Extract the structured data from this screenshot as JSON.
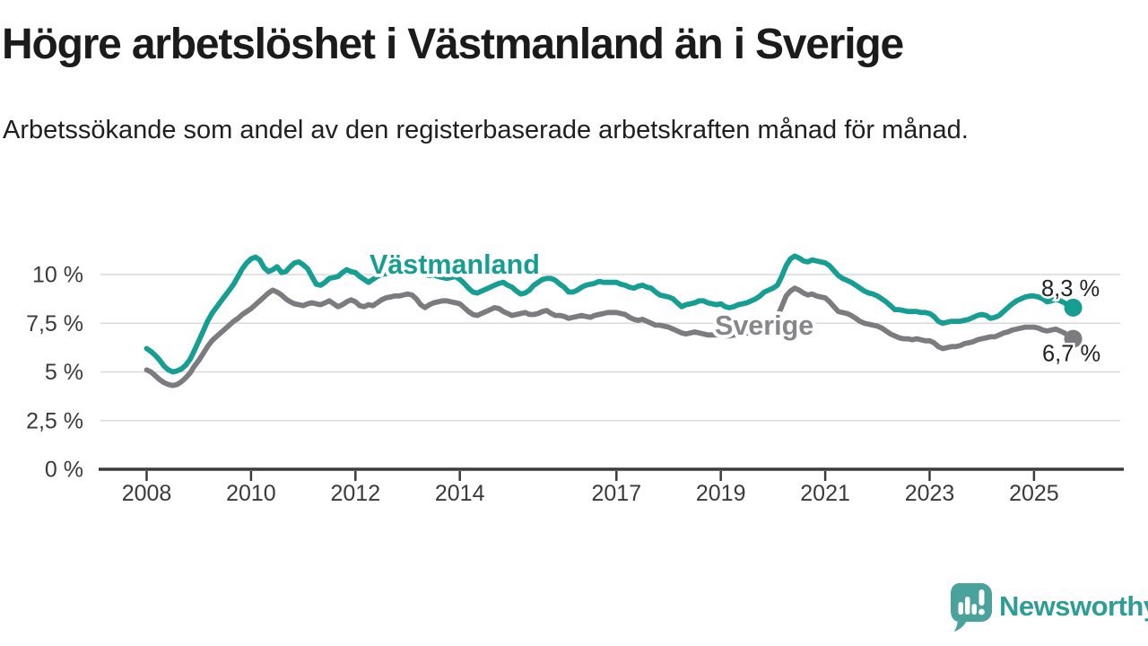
{
  "page": {
    "title": "Högre arbetslöshet i Västmanland än i Sverige",
    "subtitle": "Arbetssökande som andel av den registerbaserade arbetskraften månad för månad."
  },
  "branding": {
    "logo_text": "Newsworthy",
    "logo_icon": "newsworthy-speech-bubble-bar-chart-icon",
    "logo_icon_color": "#49a39c",
    "logo_text_color": "#2d9d96"
  },
  "chart_data": {
    "type": "line",
    "title": "Högre arbetslöshet i Västmanland än i Sverige",
    "subtitle": "Arbetssökande som andel av den registerbaserade arbetskraften månad för månad.",
    "frequency": "monthly",
    "x_start": "2008-01",
    "x_end": "2025-10",
    "grid": "horizontal",
    "legend_position": "inline-labels",
    "ylim": [
      0,
      11.6
    ],
    "y_tick_labels": [
      "10 %",
      "7,5 %",
      "5 %",
      "2,5 %",
      "0 %"
    ],
    "y_tick_values": [
      10,
      7.5,
      5,
      2.5,
      0
    ],
    "x_ticks": [
      {
        "year": 2008,
        "label": "2008"
      },
      {
        "year": 2010,
        "label": "2010"
      },
      {
        "year": 2012,
        "label": "2012"
      },
      {
        "year": 2014,
        "label": "2014"
      },
      {
        "year": 2017,
        "label": "2017"
      },
      {
        "year": 2019,
        "label": "2019"
      },
      {
        "year": 2021,
        "label": "2021"
      },
      {
        "year": 2023,
        "label": "2023"
      },
      {
        "year": 2025,
        "label": "2025"
      }
    ],
    "style": {
      "grid_color": "#d9d9d9",
      "axis_color": "#3b3b3b",
      "axis_text_color": "#3a3a3a",
      "end_label_color": "#222222",
      "halo_color": "#ffffff"
    },
    "series": [
      {
        "name": "Västmanland",
        "color": "#169e93",
        "label_color": "#169e93",
        "end_label": "8,3 %",
        "end_value": 8.3,
        "values": [
          6.2,
          6.05,
          5.85,
          5.6,
          5.3,
          5.1,
          5.0,
          5.05,
          5.15,
          5.35,
          5.65,
          6.1,
          6.6,
          7.1,
          7.6,
          8.0,
          8.3,
          8.6,
          8.9,
          9.2,
          9.5,
          9.9,
          10.3,
          10.6,
          10.8,
          10.9,
          10.75,
          10.35,
          10.15,
          10.25,
          10.4,
          10.1,
          10.15,
          10.4,
          10.6,
          10.65,
          10.5,
          10.3,
          9.9,
          9.5,
          9.45,
          9.6,
          9.8,
          9.85,
          9.9,
          10.1,
          10.25,
          10.15,
          10.1,
          9.9,
          9.75,
          9.6,
          9.75,
          9.9,
          10.0,
          10.05,
          10.15,
          10.3,
          10.4,
          10.45,
          10.45,
          10.4,
          10.3,
          10.15,
          10.0,
          9.95,
          10.0,
          9.9,
          9.85,
          9.8,
          9.85,
          9.9,
          9.75,
          9.55,
          9.3,
          9.1,
          9.05,
          9.15,
          9.25,
          9.35,
          9.45,
          9.55,
          9.6,
          9.45,
          9.35,
          9.15,
          9.0,
          9.05,
          9.2,
          9.45,
          9.6,
          9.75,
          9.8,
          9.8,
          9.7,
          9.5,
          9.35,
          9.1,
          9.1,
          9.2,
          9.35,
          9.45,
          9.5,
          9.55,
          9.65,
          9.6,
          9.6,
          9.6,
          9.6,
          9.5,
          9.45,
          9.35,
          9.3,
          9.4,
          9.45,
          9.35,
          9.3,
          9.1,
          8.95,
          8.9,
          8.85,
          8.75,
          8.55,
          8.35,
          8.45,
          8.5,
          8.55,
          8.65,
          8.65,
          8.55,
          8.5,
          8.45,
          8.5,
          8.35,
          8.3,
          8.35,
          8.45,
          8.5,
          8.55,
          8.65,
          8.75,
          8.9,
          9.1,
          9.2,
          9.3,
          9.45,
          9.9,
          10.45,
          10.8,
          10.95,
          10.85,
          10.7,
          10.65,
          10.75,
          10.7,
          10.65,
          10.6,
          10.45,
          10.2,
          9.95,
          9.8,
          9.7,
          9.6,
          9.45,
          9.3,
          9.15,
          9.05,
          9.0,
          8.9,
          8.75,
          8.6,
          8.4,
          8.2,
          8.2,
          8.15,
          8.1,
          8.1,
          8.1,
          8.05,
          8.05,
          8.0,
          7.85,
          7.6,
          7.5,
          7.55,
          7.6,
          7.6,
          7.6,
          7.65,
          7.7,
          7.8,
          7.9,
          7.95,
          7.9,
          7.75,
          7.8,
          7.9,
          8.1,
          8.3,
          8.5,
          8.65,
          8.75,
          8.85,
          8.9,
          8.9,
          8.85,
          8.75,
          8.6,
          8.65,
          8.75,
          8.65,
          8.55,
          8.4,
          8.3
        ]
      },
      {
        "name": "Sverige",
        "color": "#7b7b80",
        "label_color": "#86868b",
        "end_label": "6,7 %",
        "end_value": 6.7,
        "values": [
          5.1,
          5.0,
          4.8,
          4.6,
          4.45,
          4.35,
          4.3,
          4.35,
          4.5,
          4.7,
          4.95,
          5.3,
          5.6,
          5.95,
          6.3,
          6.6,
          6.8,
          7.0,
          7.2,
          7.4,
          7.6,
          7.75,
          7.95,
          8.1,
          8.25,
          8.45,
          8.65,
          8.85,
          9.05,
          9.2,
          9.1,
          8.95,
          8.75,
          8.6,
          8.5,
          8.45,
          8.4,
          8.5,
          8.55,
          8.5,
          8.45,
          8.55,
          8.65,
          8.5,
          8.35,
          8.45,
          8.6,
          8.7,
          8.6,
          8.4,
          8.35,
          8.45,
          8.4,
          8.55,
          8.7,
          8.8,
          8.85,
          8.9,
          8.9,
          8.95,
          9.0,
          8.95,
          8.75,
          8.45,
          8.3,
          8.45,
          8.55,
          8.6,
          8.65,
          8.65,
          8.6,
          8.55,
          8.5,
          8.3,
          8.1,
          7.95,
          7.9,
          8.0,
          8.1,
          8.2,
          8.3,
          8.25,
          8.1,
          8.0,
          7.9,
          7.95,
          8.0,
          8.05,
          7.95,
          7.95,
          8.0,
          8.1,
          8.15,
          8.0,
          7.9,
          7.9,
          7.85,
          7.75,
          7.8,
          7.85,
          7.9,
          7.85,
          7.8,
          7.9,
          7.95,
          8.0,
          8.05,
          8.05,
          8.05,
          8.0,
          7.95,
          7.8,
          7.7,
          7.65,
          7.7,
          7.6,
          7.5,
          7.4,
          7.4,
          7.35,
          7.3,
          7.2,
          7.1,
          7.0,
          6.95,
          7.0,
          7.05,
          7.0,
          6.95,
          6.9,
          6.9,
          6.9,
          6.9,
          6.85,
          6.85,
          6.9,
          6.9,
          6.95,
          7.0,
          7.0,
          7.0,
          7.05,
          7.2,
          7.4,
          7.6,
          7.85,
          8.35,
          8.9,
          9.15,
          9.3,
          9.2,
          9.05,
          8.95,
          9.0,
          8.9,
          8.85,
          8.8,
          8.6,
          8.35,
          8.1,
          8.05,
          8.0,
          7.9,
          7.75,
          7.6,
          7.5,
          7.45,
          7.4,
          7.35,
          7.25,
          7.1,
          6.95,
          6.85,
          6.75,
          6.7,
          6.7,
          6.65,
          6.7,
          6.65,
          6.6,
          6.6,
          6.5,
          6.3,
          6.2,
          6.25,
          6.3,
          6.3,
          6.35,
          6.45,
          6.5,
          6.55,
          6.65,
          6.7,
          6.75,
          6.8,
          6.8,
          6.9,
          7.0,
          7.05,
          7.15,
          7.2,
          7.25,
          7.3,
          7.3,
          7.3,
          7.25,
          7.15,
          7.1,
          7.15,
          7.2,
          7.1,
          7.0,
          6.85,
          6.7
        ]
      }
    ]
  }
}
